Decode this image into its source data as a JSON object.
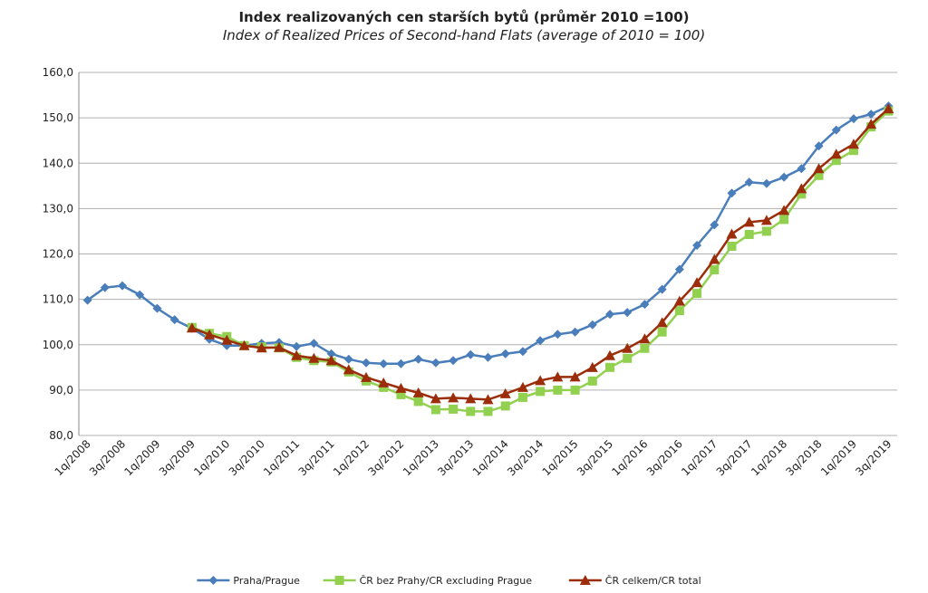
{
  "chart_data": {
    "type": "line",
    "title": "Index realizovaných cen starších bytů (průměr 2010 =100)",
    "subtitle": "Index of Realized Prices of Second-hand Flats (average of 2010 = 100)",
    "categories": [
      "1q/2008",
      null,
      "3q/2008",
      null,
      "1q/2009",
      null,
      "3q/2009",
      null,
      "1q/2010",
      null,
      "3q/2010",
      null,
      "1q/2011",
      null,
      "3q/2011",
      null,
      "1q/2012",
      null,
      "3q/2012",
      null,
      "1q/2013",
      null,
      "3q/2013",
      null,
      "1q/2014",
      null,
      "3q/2014",
      null,
      "1q/2015",
      null,
      "3q/2015",
      null,
      "1q/2016",
      null,
      "3q/2016",
      null,
      "1q/2017",
      null,
      "3q/2017",
      null,
      "1q/2018",
      null,
      "3q/2018",
      null,
      "1q/2019",
      null,
      "3q/2019"
    ],
    "series": [
      {
        "name": "Praha/Prague",
        "color": "#4a7ebb",
        "marker": "diamond",
        "values": [
          109.8,
          112.6,
          113.0,
          111.0,
          108.0,
          105.5,
          103.6,
          101.2,
          99.8,
          99.8,
          100.3,
          100.5,
          99.6,
          100.3,
          98.0,
          96.8,
          96.0,
          95.8,
          95.8,
          96.8,
          96.0,
          96.5,
          97.8,
          97.2,
          98.0,
          98.5,
          100.9,
          102.3,
          102.8,
          104.4,
          106.7,
          107.1,
          108.9,
          112.2,
          116.6,
          121.9,
          126.4,
          133.4,
          135.8,
          135.5,
          136.9,
          138.8,
          143.8,
          147.3,
          149.8,
          150.8,
          152.6
        ]
      },
      {
        "name": "ČR bez Prahy/CR excluding Prague",
        "color": "#92d050",
        "marker": "square",
        "values": [
          null,
          null,
          null,
          null,
          null,
          null,
          103.8,
          102.5,
          101.8,
          99.8,
          99.5,
          99.3,
          97.2,
          96.5,
          96.2,
          94.0,
          92.0,
          90.6,
          89.0,
          87.5,
          85.7,
          85.8,
          85.3,
          85.3,
          86.5,
          88.4,
          89.7,
          90.0,
          90.0,
          92.0,
          95.0,
          97.0,
          99.2,
          102.8,
          107.5,
          111.3,
          116.5,
          121.7,
          124.3,
          125.0,
          127.6,
          133.2,
          137.3,
          140.6,
          142.8,
          148.0,
          151.5
        ]
      },
      {
        "name": "ČR celkem/CR total",
        "color": "#9b2d0a",
        "marker": "triangle",
        "values": [
          null,
          null,
          null,
          null,
          null,
          null,
          103.7,
          102.2,
          101.0,
          99.8,
          99.3,
          99.4,
          97.6,
          97.0,
          96.5,
          94.5,
          92.8,
          91.6,
          90.4,
          89.4,
          88.1,
          88.3,
          88.1,
          87.9,
          89.2,
          90.6,
          92.1,
          92.9,
          92.9,
          95.0,
          97.6,
          99.2,
          101.3,
          104.9,
          109.6,
          113.7,
          118.8,
          124.4,
          127.0,
          127.4,
          129.6,
          134.4,
          138.8,
          142.0,
          144.2,
          148.6,
          152.0
        ]
      }
    ],
    "ylim": [
      80,
      160
    ],
    "yticks": [
      {
        "value": 80,
        "label": "80,0"
      },
      {
        "value": 90,
        "label": "90,0"
      },
      {
        "value": 100,
        "label": "100,0"
      },
      {
        "value": 110,
        "label": "110,0"
      },
      {
        "value": 120,
        "label": "120,0"
      },
      {
        "value": 130,
        "label": "130,0"
      },
      {
        "value": 140,
        "label": "140,0"
      },
      {
        "value": 150,
        "label": "150,0"
      },
      {
        "value": 160,
        "label": "160,0"
      }
    ],
    "grid": true,
    "legend": "bottom"
  }
}
